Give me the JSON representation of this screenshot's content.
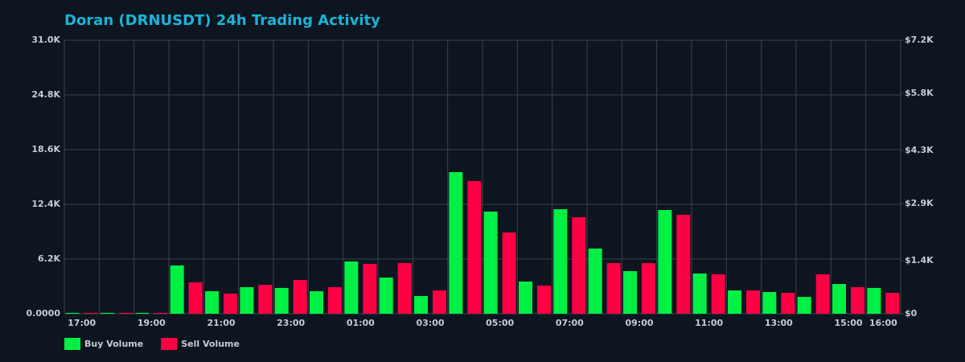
{
  "chart_data": {
    "type": "bar",
    "title": "Doran (DRNUSDT) 24h Trading Activity",
    "categories": [
      "17:00",
      null,
      "19:00",
      null,
      "21:00",
      null,
      "23:00",
      null,
      "01:00",
      null,
      "03:00",
      null,
      "05:00",
      null,
      "07:00",
      null,
      "09:00",
      null,
      "11:00",
      null,
      "13:00",
      null,
      "15:00",
      "16:00"
    ],
    "series": [
      {
        "name": "Buy Volume",
        "color": "#00f044",
        "values": [
          100,
          100,
          100,
          5470,
          2550,
          3010,
          2920,
          2550,
          5930,
          4100,
          2010,
          16050,
          11580,
          3650,
          11850,
          7390,
          4830,
          11760,
          4560,
          2640,
          2460,
          1910,
          3370,
          2920
        ]
      },
      {
        "name": "Sell Volume",
        "color": "#ff0044",
        "values": [
          100,
          100,
          100,
          3560,
          2280,
          3280,
          3830,
          3010,
          5650,
          5740,
          2640,
          15040,
          9210,
          3190,
          10940,
          5740,
          5740,
          11210,
          4470,
          2640,
          2370,
          4470,
          3010,
          2370
        ]
      }
    ],
    "ylim": [
      0,
      31000
    ],
    "yticks": [
      {
        "value": 0,
        "label": "0.0000"
      },
      {
        "value": 6200,
        "label": "6.2K"
      },
      {
        "value": 12400,
        "label": "12.4K"
      },
      {
        "value": 18600,
        "label": "18.6K"
      },
      {
        "value": 24800,
        "label": "24.8K"
      },
      {
        "value": 31000,
        "label": "31.0K"
      }
    ],
    "y2lim": [
      0,
      7200
    ],
    "y2ticks": [
      {
        "value": 0,
        "label": "$0"
      },
      {
        "value": 1400,
        "label": "$1.4K"
      },
      {
        "value": 2900,
        "label": "$2.9K"
      },
      {
        "value": 4300,
        "label": "$4.3K"
      },
      {
        "value": 5800,
        "label": "$5.8K"
      },
      {
        "value": 7200,
        "label": "$7.2K"
      }
    ],
    "grid": true,
    "legend": "bottom-left"
  }
}
